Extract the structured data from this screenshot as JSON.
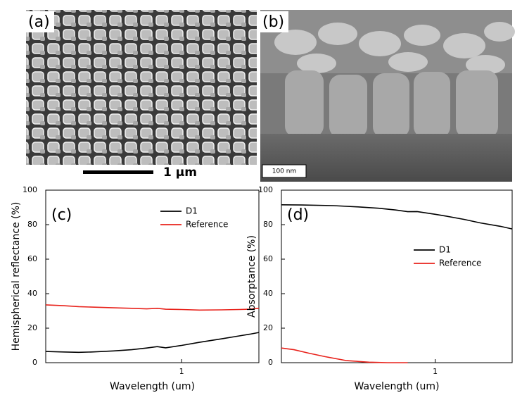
{
  "images": [
    {
      "label": "(a)",
      "scale_bar": "1 µm"
    },
    {
      "label": "(b)",
      "scale_bar": "100 nm"
    }
  ],
  "chart_data": [
    {
      "type": "line",
      "annotation": "(c)",
      "x_label": "Wavelength (um)",
      "y_label": "Hemispherical reflectance (%)",
      "xlim": [
        0.25,
        2.2
      ],
      "xticks": [
        1
      ],
      "x_log": true,
      "ylim": [
        0,
        100
      ],
      "yticks": [
        0,
        20,
        40,
        60,
        80,
        100
      ],
      "legend": "upper right",
      "series": [
        {
          "name": "D1",
          "color": "#000000",
          "x": [
            0.25,
            0.3,
            0.35,
            0.4,
            0.5,
            0.6,
            0.7,
            0.78,
            0.85,
            1.0,
            1.2,
            1.5,
            1.8,
            2.0,
            2.2
          ],
          "values": [
            6.5,
            6.2,
            6.0,
            6.2,
            6.8,
            7.5,
            8.5,
            9.3,
            8.6,
            10.0,
            11.8,
            13.8,
            15.5,
            16.5,
            17.5
          ]
        },
        {
          "name": "Reference",
          "color": "#e8221b",
          "x": [
            0.25,
            0.3,
            0.35,
            0.4,
            0.5,
            0.6,
            0.7,
            0.78,
            0.85,
            1.0,
            1.2,
            1.5,
            1.8,
            2.0,
            2.2
          ],
          "values": [
            33.5,
            33.0,
            32.5,
            32.2,
            31.8,
            31.5,
            31.2,
            31.5,
            31.0,
            30.8,
            30.5,
            30.6,
            30.8,
            31.0,
            31.5
          ]
        }
      ]
    },
    {
      "type": "line",
      "annotation": "(d)",
      "x_label": "Wavelength (um)",
      "y_label": "Absorptance  (%)",
      "xlim": [
        0.25,
        2.0
      ],
      "xticks": [
        1
      ],
      "x_log": true,
      "ylim": [
        0,
        100
      ],
      "yticks": [
        0,
        20,
        40,
        60,
        80,
        100
      ],
      "legend": "center right",
      "series": [
        {
          "name": "D1",
          "color": "#000000",
          "x": [
            0.25,
            0.3,
            0.4,
            0.5,
            0.6,
            0.7,
            0.78,
            0.85,
            1.0,
            1.1,
            1.3,
            1.5,
            1.8,
            2.0
          ],
          "values": [
            91.5,
            91.4,
            91.0,
            90.3,
            89.5,
            88.5,
            87.5,
            87.6,
            86.0,
            85.0,
            83.0,
            81.0,
            79.0,
            77.5
          ]
        },
        {
          "name": "Reference",
          "color": "#e8221b",
          "x": [
            0.25,
            0.28,
            0.32,
            0.37,
            0.45,
            0.55,
            0.65,
            0.78
          ],
          "values": [
            8.5,
            7.5,
            5.5,
            3.5,
            1.2,
            0.3,
            0,
            0
          ]
        }
      ]
    }
  ]
}
